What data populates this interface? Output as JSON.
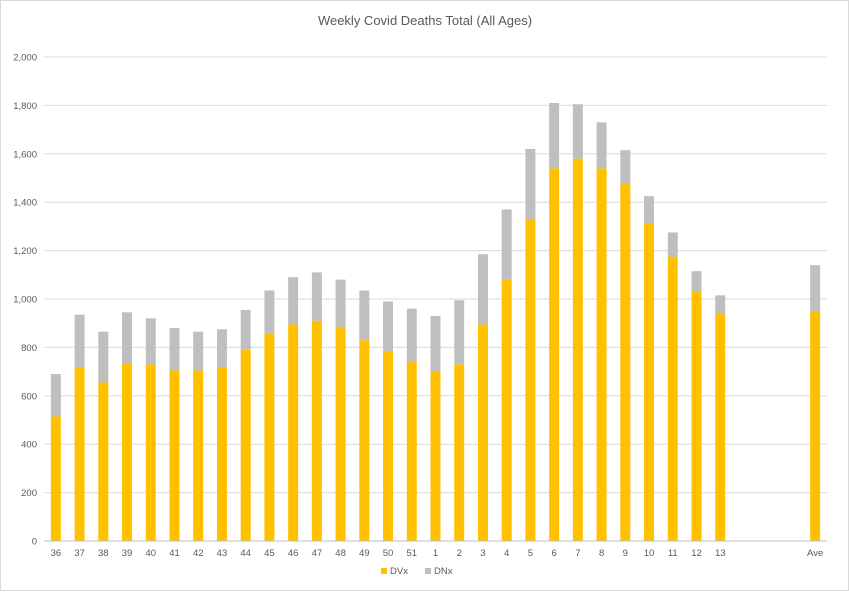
{
  "chart_data": {
    "type": "bar",
    "stacked": true,
    "title": "Weekly Covid Deaths Total (All Ages)",
    "xlabel": "",
    "ylabel": "",
    "ylim": [
      0,
      2000
    ],
    "yticks": [
      0,
      200,
      400,
      600,
      800,
      1000,
      1200,
      1400,
      1600,
      1800,
      2000
    ],
    "ytick_labels": [
      "0",
      "200",
      "400",
      "600",
      "800",
      "1,000",
      "1,200",
      "1,400",
      "1,600",
      "1,800",
      "2,000"
    ],
    "grid": true,
    "legend_position": "bottom",
    "categories": [
      "36",
      "37",
      "38",
      "39",
      "40",
      "41",
      "42",
      "43",
      "44",
      "45",
      "46",
      "47",
      "48",
      "49",
      "50",
      "51",
      "1",
      "2",
      "3",
      "4",
      "5",
      "6",
      "7",
      "8",
      "9",
      "10",
      "11",
      "12",
      "13",
      "",
      "",
      "",
      "Ave"
    ],
    "series": [
      {
        "name": "DVx",
        "color": "#FFC000",
        "values": [
          515,
          720,
          655,
          735,
          730,
          705,
          705,
          720,
          790,
          860,
          895,
          910,
          885,
          830,
          785,
          740,
          700,
          730,
          895,
          1080,
          1330,
          1540,
          1580,
          1540,
          1475,
          1310,
          1175,
          1030,
          940,
          null,
          null,
          null,
          950
        ]
      },
      {
        "name": "DNx",
        "color": "#BFBFBF",
        "values": [
          175,
          215,
          210,
          210,
          190,
          175,
          160,
          155,
          165,
          175,
          195,
          200,
          195,
          205,
          205,
          220,
          230,
          265,
          290,
          290,
          290,
          270,
          225,
          190,
          140,
          115,
          100,
          85,
          75,
          null,
          null,
          null,
          190
        ]
      }
    ]
  }
}
